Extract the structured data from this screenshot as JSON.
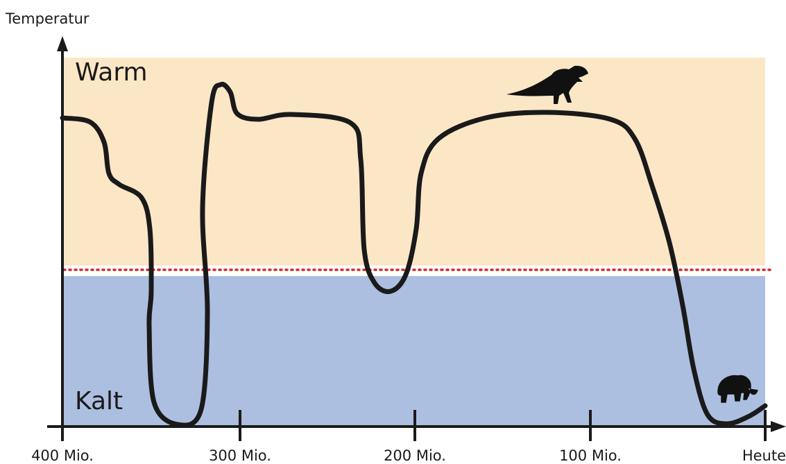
{
  "y_axis_label": "Temperatur",
  "regions": {
    "warm": "Warm",
    "cold": "Kalt"
  },
  "x_axis_labels": [
    "400 Mio.",
    "300 Mio.",
    "200 Mio.",
    "100 Mio.",
    "Heute"
  ]
}
